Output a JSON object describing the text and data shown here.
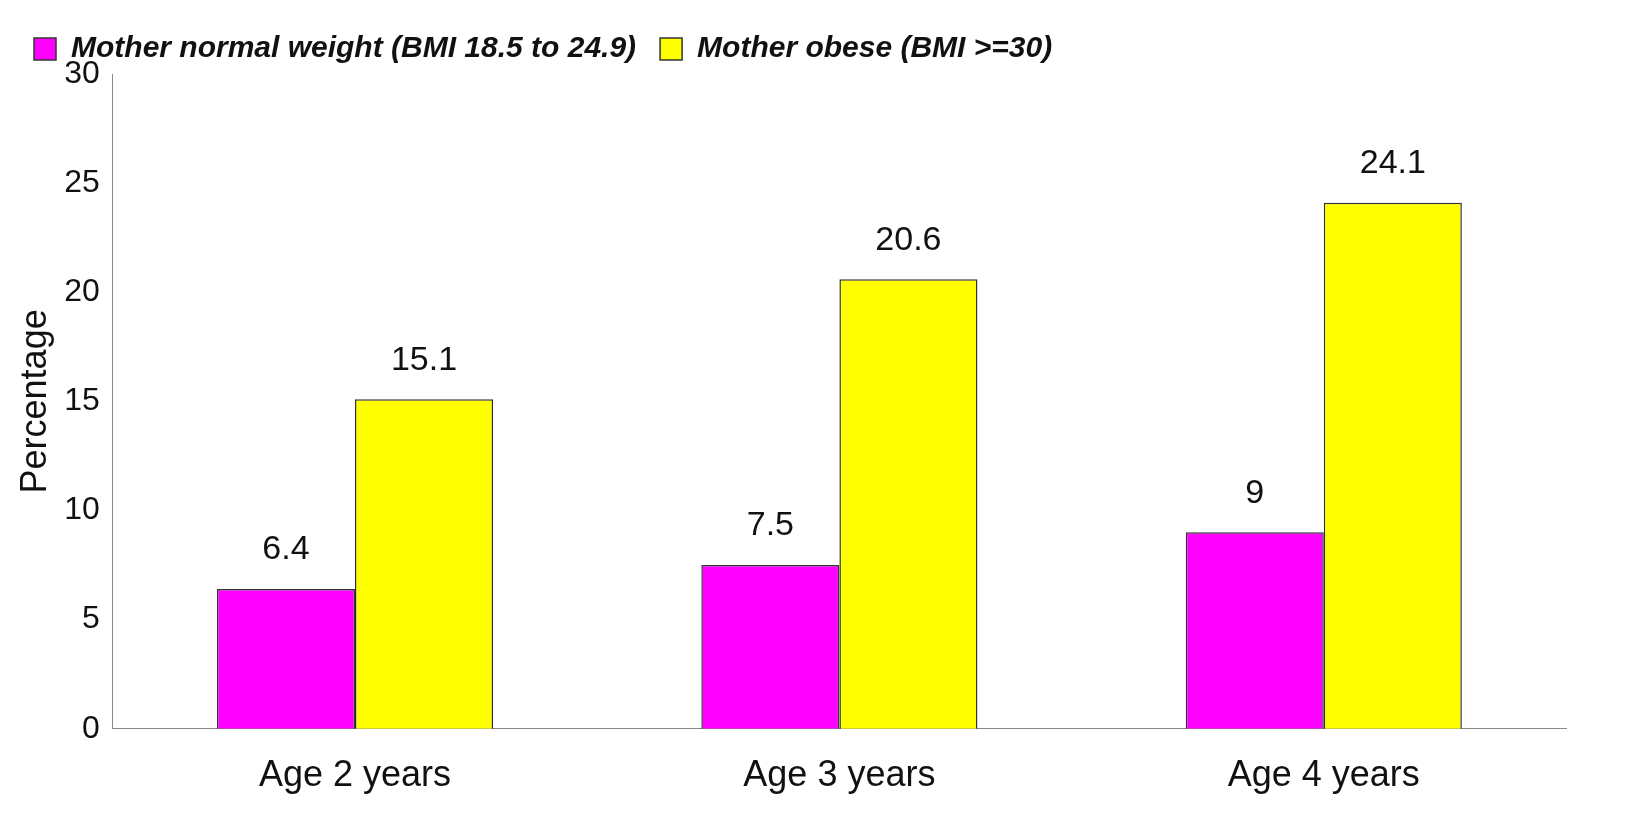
{
  "chart_data": {
    "type": "bar",
    "ylabel": "Percentage",
    "categories": [
      "Age 2 years",
      "Age 3 years",
      "Age 4 years"
    ],
    "series": [
      {
        "name": "Mother normal weight (BMI 18.5 to 24.9)",
        "color": "#ff00ff",
        "values": [
          6.4,
          7.5,
          9
        ]
      },
      {
        "name": "Mother obese (BMI >=30)",
        "color": "#ffff00",
        "values": [
          15.1,
          20.6,
          24.1
        ]
      }
    ],
    "ylim": [
      0,
      30
    ],
    "yticks": [
      0,
      5,
      10,
      15,
      20,
      25,
      30
    ],
    "grid": false,
    "legend": "top left",
    "data_labels": true
  }
}
